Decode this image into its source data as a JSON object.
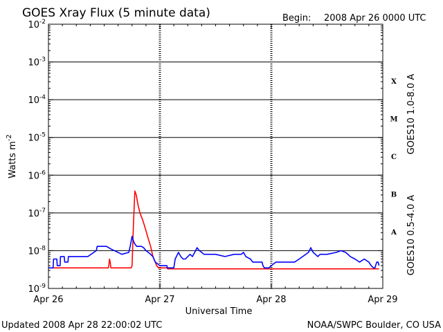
{
  "chart_data": {
    "type": "line",
    "title": "GOES Xray Flux (5 minute data)",
    "begin_label": "Begin:",
    "begin_value": "2008 Apr 26 0000 UTC",
    "xlabel": "Universal Time",
    "ylabel": "Watts m",
    "ylabel_exp": "-2",
    "yscale": "log",
    "ylim": [
      1e-09,
      0.01
    ],
    "xlim": [
      0,
      72
    ],
    "y_ticks": [
      {
        "base": "10",
        "exp": "-2"
      },
      {
        "base": "10",
        "exp": "-3"
      },
      {
        "base": "10",
        "exp": "-4"
      },
      {
        "base": "10",
        "exp": "-5"
      },
      {
        "base": "10",
        "exp": "-6"
      },
      {
        "base": "10",
        "exp": "-7"
      },
      {
        "base": "10",
        "exp": "-8"
      },
      {
        "base": "10",
        "exp": "-9"
      }
    ],
    "x_ticks": [
      "Apr 26",
      "Apr 27",
      "Apr 28",
      "Apr 29"
    ],
    "flare_classes": [
      "X",
      "M",
      "C",
      "B",
      "A"
    ],
    "footer_left": "Updated 2008 Apr 28 22:00:02 UTC",
    "footer_right": "NOAA/SWPC Boulder, CO USA",
    "series": [
      {
        "name": "GOES10 1.0-8.0 A",
        "color": "#ff0000",
        "x": [
          0,
          12.9,
          13.0,
          13.15,
          13.3,
          13.45,
          13.6,
          16.0,
          17.8,
          18.0,
          18.3,
          18.6,
          18.9,
          19.3,
          19.7,
          20.2,
          20.7,
          21.3,
          22.0,
          22.5,
          23.0,
          23.3,
          23.7,
          24.0,
          24.5,
          25.5,
          25.7,
          30.0,
          40.0,
          50.0,
          60.0,
          70.0,
          71.2
        ],
        "values": [
          3.5e-09,
          3.5e-09,
          4e-09,
          6e-09,
          5e-09,
          3.5e-09,
          3.5e-09,
          3.5e-09,
          3.5e-09,
          4e-09,
          5e-08,
          3.8e-07,
          3e-07,
          1.6e-07,
          1e-07,
          7e-08,
          4.5e-08,
          2.5e-08,
          1.3e-08,
          7e-09,
          5e-09,
          4e-09,
          3.5e-09,
          3.5e-09,
          3.5e-09,
          3.5e-09,
          3.3e-09,
          3.3e-09,
          3.3e-09,
          3.3e-09,
          3.3e-09,
          3.3e-09,
          3.3e-09
        ]
      },
      {
        "name": "GOES10 0.5-4.0 A",
        "color": "#0000ff",
        "x": [
          0,
          1.0,
          1.1,
          1.8,
          1.9,
          2.5,
          2.6,
          3.4,
          3.5,
          4.2,
          4.3,
          6.5,
          8.5,
          10.3,
          10.5,
          12.5,
          13.5,
          15.0,
          15.8,
          17.3,
          17.6,
          18.0,
          18.3,
          18.6,
          19.0,
          19.5,
          20.0,
          20.5,
          21.0,
          21.5,
          22.0,
          22.5,
          23.0,
          23.5,
          24.0,
          25.5,
          25.6,
          27.0,
          27.3,
          28.0,
          28.5,
          29.0,
          29.5,
          30.0,
          30.5,
          31.0,
          31.5,
          32.0,
          32.5,
          33.0,
          33.5,
          34.0,
          36.0,
          38.0,
          40.0,
          41.5,
          42.0,
          42.5,
          43.5,
          44.0,
          45.0,
          46.0,
          46.2,
          46.5,
          47.0,
          47.5,
          48.0,
          48.5,
          49.0,
          50.0,
          53.0,
          54.0,
          56.0,
          56.5,
          57.0,
          57.5,
          58.0,
          58.5,
          59.0,
          60.0,
          62.0,
          63.0,
          64.0,
          64.5,
          65.0,
          66.0,
          67.0,
          68.0,
          69.0,
          69.5,
          70.0,
          70.3,
          70.7,
          71.0,
          71.2
        ],
        "values": [
          3.5e-09,
          3.5e-09,
          6e-09,
          6e-09,
          4e-09,
          4e-09,
          7e-09,
          7e-09,
          5e-09,
          5e-09,
          7e-09,
          7e-09,
          7e-09,
          1e-08,
          1.3e-08,
          1.3e-08,
          1.1e-08,
          9e-09,
          8e-09,
          9e-09,
          1.3e-08,
          2.4e-08,
          1.8e-08,
          1.5e-08,
          1.3e-08,
          1.3e-08,
          1.3e-08,
          1.2e-08,
          1e-08,
          9e-09,
          8e-09,
          7e-09,
          5e-09,
          4.5e-09,
          4e-09,
          4e-09,
          3.5e-09,
          3.5e-09,
          6e-09,
          9e-09,
          7e-09,
          6e-09,
          6e-09,
          7e-09,
          8e-09,
          7e-09,
          9e-09,
          1.2e-08,
          1e-08,
          9e-09,
          8e-09,
          8e-09,
          8e-09,
          7e-09,
          8e-09,
          8e-09,
          9e-09,
          7e-09,
          6e-09,
          5e-09,
          5e-09,
          5e-09,
          4e-09,
          3.5e-09,
          3.5e-09,
          3.5e-09,
          4e-09,
          4.5e-09,
          5e-09,
          5e-09,
          5e-09,
          6e-09,
          9e-09,
          1.2e-08,
          9e-09,
          8e-09,
          7e-09,
          8e-09,
          8e-09,
          8e-09,
          9e-09,
          1e-08,
          9e-09,
          8e-09,
          7e-09,
          6e-09,
          5e-09,
          6e-09,
          5e-09,
          4e-09,
          3.5e-09,
          3.5e-09,
          5e-09,
          5e-09,
          4e-09
        ]
      }
    ]
  }
}
